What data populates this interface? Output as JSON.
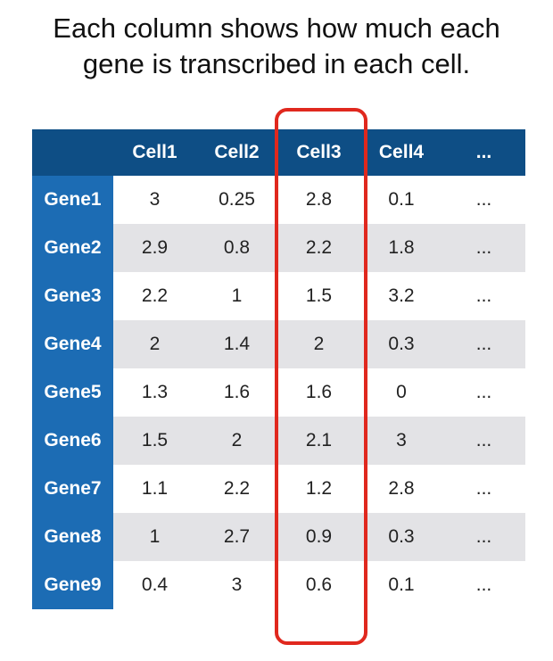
{
  "title": {
    "line1": "Each column shows how much each",
    "line2": "gene is transcribed in each cell."
  },
  "table": {
    "corner": "",
    "columns": [
      "Cell1",
      "Cell2",
      "Cell3",
      "Cell4",
      "..."
    ],
    "rows": [
      {
        "gene": "Gene1",
        "values": [
          "3",
          "0.25",
          "2.8",
          "0.1",
          "..."
        ]
      },
      {
        "gene": "Gene2",
        "values": [
          "2.9",
          "0.8",
          "2.2",
          "1.8",
          "..."
        ]
      },
      {
        "gene": "Gene3",
        "values": [
          "2.2",
          "1",
          "1.5",
          "3.2",
          "..."
        ]
      },
      {
        "gene": "Gene4",
        "values": [
          "2",
          "1.4",
          "2",
          "0.3",
          "..."
        ]
      },
      {
        "gene": "Gene5",
        "values": [
          "1.3",
          "1.6",
          "1.6",
          "0",
          "..."
        ]
      },
      {
        "gene": "Gene6",
        "values": [
          "1.5",
          "2",
          "2.1",
          "3",
          "..."
        ]
      },
      {
        "gene": "Gene7",
        "values": [
          "1.1",
          "2.2",
          "1.2",
          "2.8",
          "..."
        ]
      },
      {
        "gene": "Gene8",
        "values": [
          "1",
          "2.7",
          "0.9",
          "0.3",
          "..."
        ]
      },
      {
        "gene": "Gene9",
        "values": [
          "0.4",
          "3",
          "0.6",
          "0.1",
          "..."
        ]
      }
    ]
  },
  "highlight": {
    "column": "Cell3",
    "color": "#e0281e"
  },
  "colors": {
    "header_bg": "#0e4e85",
    "row_header_bg": "#1c6cb4",
    "stripe_bg": "#e3e3e6"
  }
}
